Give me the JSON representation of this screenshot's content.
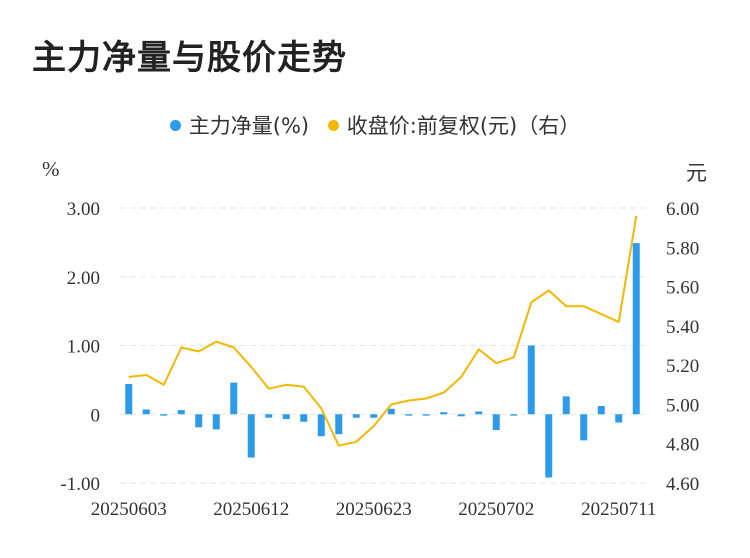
{
  "title": "主力净量与股价走势",
  "legend": {
    "series1": "主力净量(%)",
    "series2": "收盘价:前复权(元)（右）"
  },
  "units": {
    "left": "%",
    "right": "元"
  },
  "colors": {
    "bar": "#2e9bea",
    "line": "#f5b800",
    "grid": "#e6e6e6"
  },
  "chart_data": {
    "type": "bar+line",
    "left_axis": {
      "label": "%",
      "ylim": [
        -1.0,
        3.0
      ],
      "ticks": [
        "3.00",
        "2.00",
        "1.00",
        "0",
        "-1.00"
      ],
      "tick_values": [
        3,
        2,
        1,
        0,
        -1
      ]
    },
    "right_axis": {
      "label": "元",
      "ylim": [
        4.6,
        6.0
      ],
      "ticks": [
        "6.00",
        "5.80",
        "5.60",
        "5.40",
        "5.20",
        "5.00",
        "4.80",
        "4.60"
      ],
      "tick_values": [
        6.0,
        5.8,
        5.6,
        5.4,
        5.2,
        5.0,
        4.8,
        4.6
      ]
    },
    "x_tick_labels": [
      "20250603",
      "20250612",
      "20250623",
      "20250702",
      "20250711"
    ],
    "x_tick_indices": [
      0,
      7,
      14,
      21,
      28
    ],
    "series": [
      {
        "name": "主力净量(%)",
        "type": "bar",
        "axis": "left",
        "values": [
          0.44,
          0.07,
          -0.02,
          0.06,
          -0.19,
          -0.22,
          0.46,
          -0.63,
          -0.05,
          -0.07,
          -0.11,
          -0.32,
          -0.29,
          -0.05,
          -0.05,
          0.08,
          -0.02,
          -0.02,
          0.03,
          -0.03,
          0.04,
          -0.23,
          -0.02,
          1.0,
          -0.92,
          0.26,
          -0.38,
          0.12,
          -0.12,
          2.49
        ]
      },
      {
        "name": "收盘价:前复权(元)（右）",
        "type": "line",
        "axis": "right",
        "values": [
          5.14,
          5.15,
          5.1,
          5.29,
          5.27,
          5.32,
          5.29,
          5.19,
          5.08,
          5.1,
          5.09,
          4.98,
          4.79,
          4.81,
          4.89,
          5.0,
          5.02,
          5.03,
          5.06,
          5.14,
          5.28,
          5.21,
          5.24,
          5.52,
          5.58,
          5.5,
          5.5,
          5.46,
          5.42,
          5.96
        ]
      }
    ]
  }
}
